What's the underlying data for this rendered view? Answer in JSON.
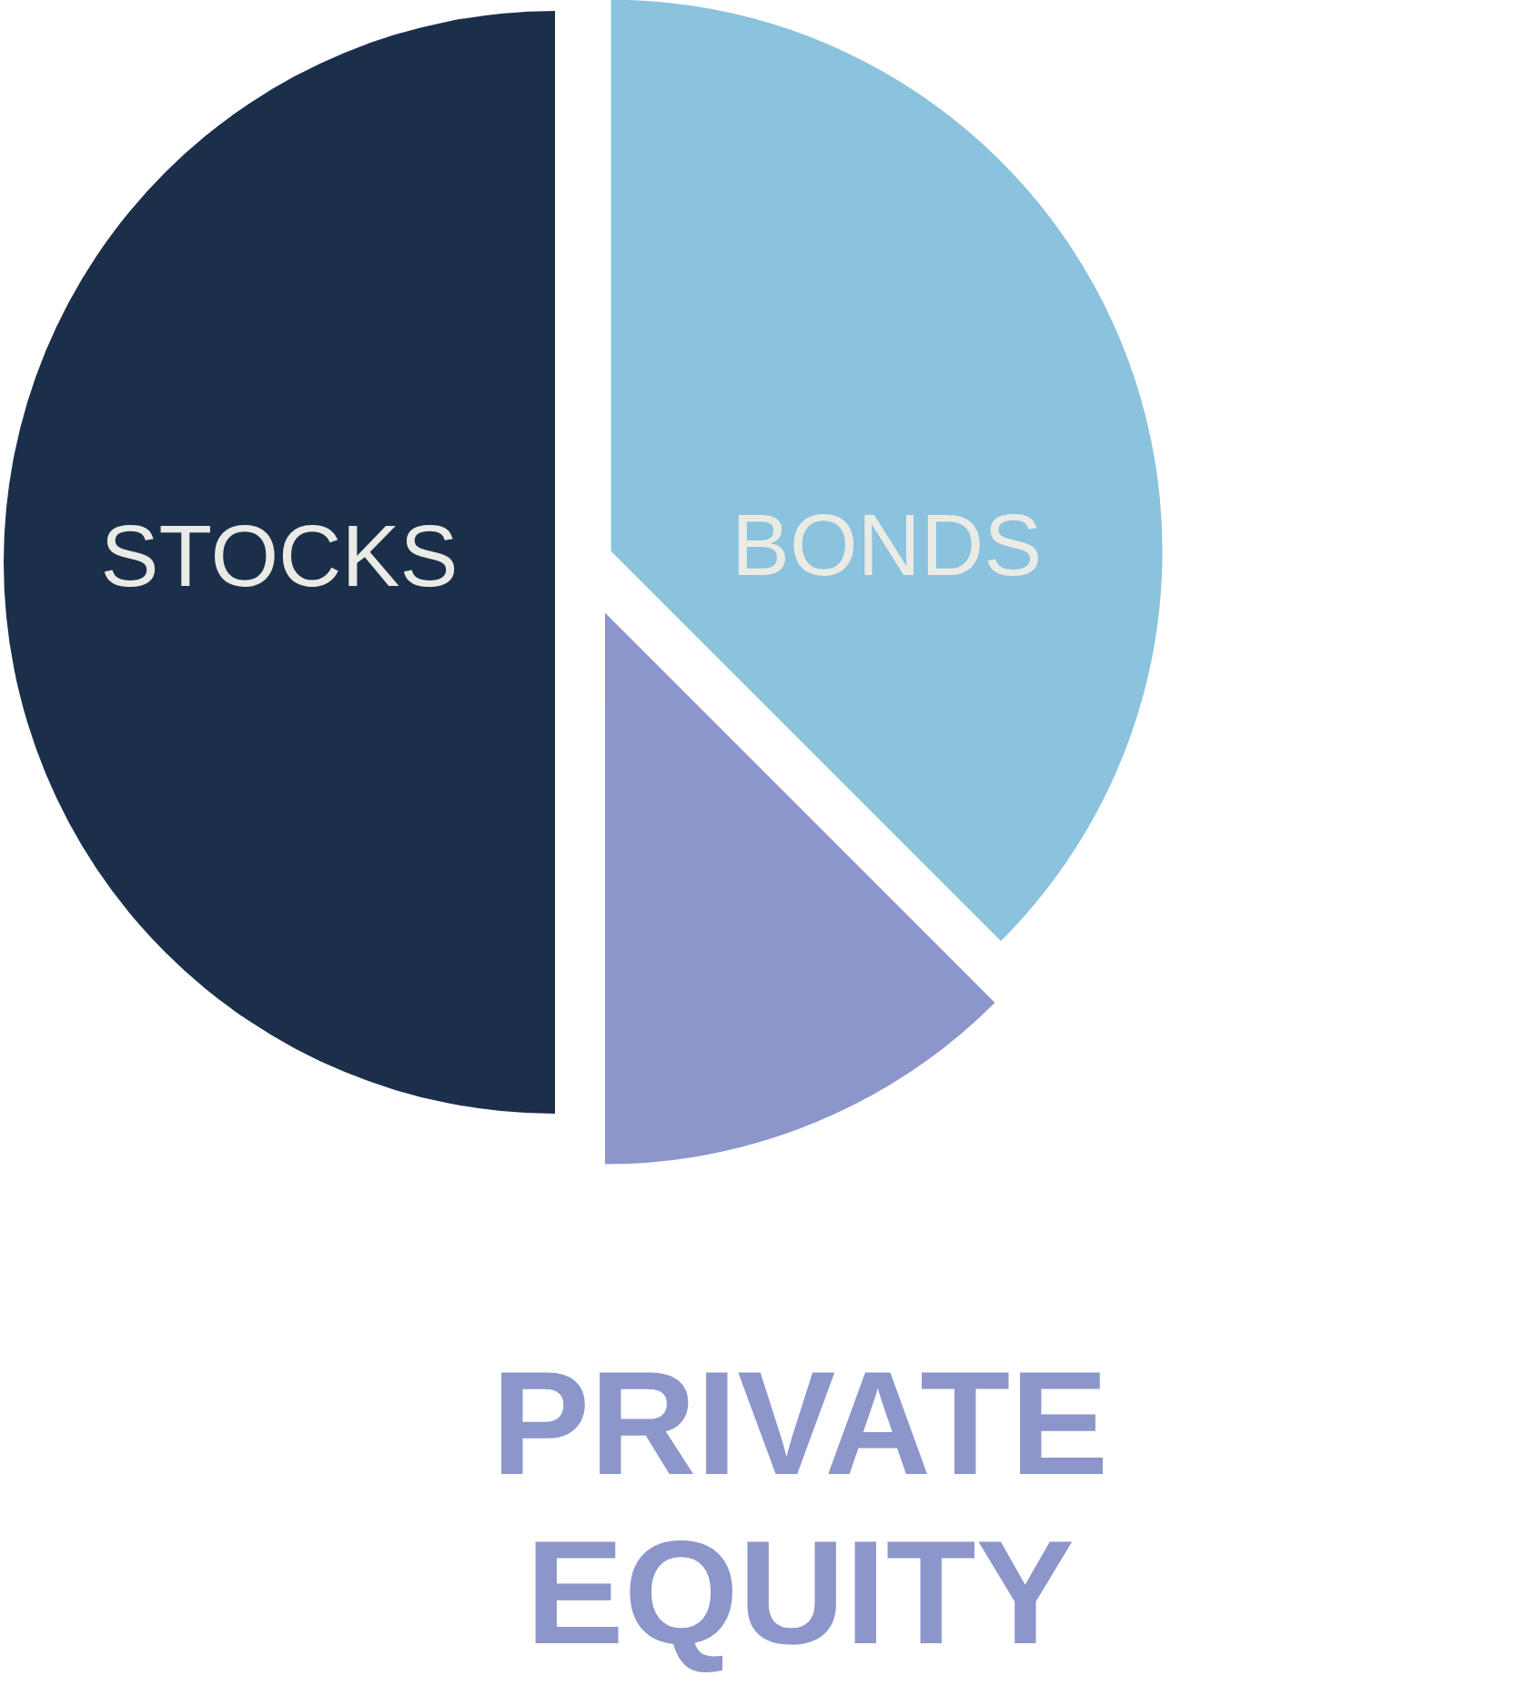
{
  "chart_data": {
    "type": "pie",
    "categories": [
      "BONDS",
      "PRIVATE EQUITY",
      "STOCKS"
    ],
    "values": [
      37.5,
      12.5,
      50
    ],
    "colors": [
      "#8bc2dd",
      "#8d96ca",
      "#1b2f4b"
    ]
  }
}
